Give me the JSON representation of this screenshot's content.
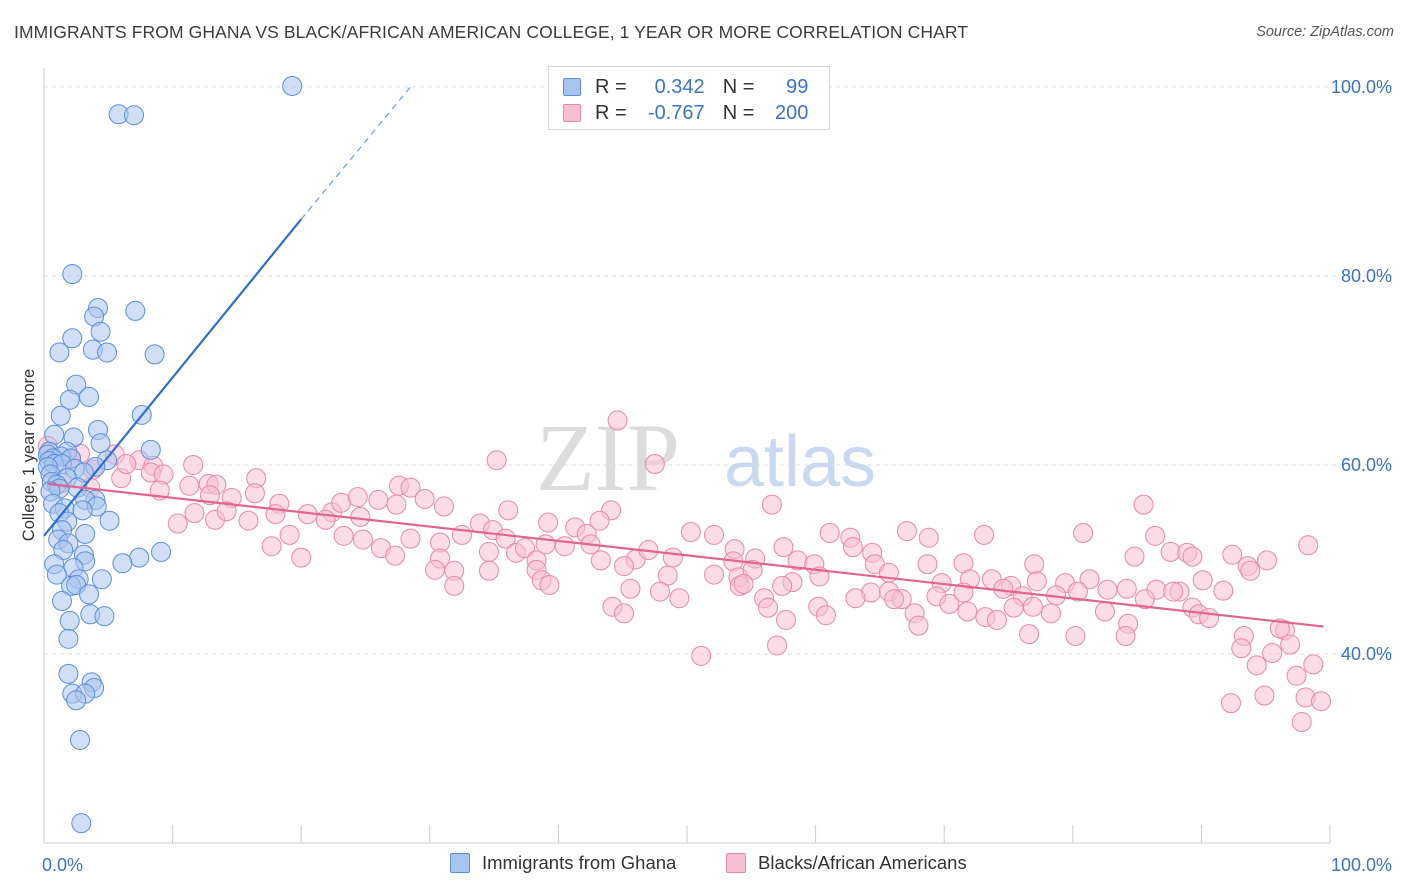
{
  "header": {
    "title": "IMMIGRANTS FROM GHANA VS BLACK/AFRICAN AMERICAN COLLEGE, 1 YEAR OR MORE CORRELATION CHART",
    "source": "Source: ZipAtlas.com"
  },
  "watermark": {
    "zip": "ZIP",
    "atlas": "atlas"
  },
  "legend": {
    "r_label": "R =",
    "n_label": "N =",
    "series": [
      {
        "r": "0.342",
        "n": "99"
      },
      {
        "r": "-0.767",
        "n": "200"
      }
    ]
  },
  "bottom_legend": [
    "Immigrants from Ghana",
    "Blacks/African Americans"
  ],
  "colors": {
    "blue_fill": "#a9c5ef",
    "blue_stroke": "#5b8fdc",
    "blue_line": "#2e6fd6",
    "pink_fill": "#f7bfd3",
    "pink_stroke": "#ea88a9",
    "pink_line": "#e0668f",
    "axis_text": "#3b73c8",
    "grid": "#dddddd"
  },
  "chart_data": {
    "type": "scatter",
    "title": "IMMIGRANTS FROM GHANA VS BLACK/AFRICAN AMERICAN COLLEGE, 1 YEAR OR MORE CORRELATION CHART",
    "xlabel": "",
    "ylabel": "College, 1 year or more",
    "xlim": [
      0,
      100
    ],
    "ylim": [
      20,
      102
    ],
    "x_tick_labels": [
      "0.0%",
      "100.0%"
    ],
    "y_ticks": [
      {
        "value": 40,
        "label": "40.0%"
      },
      {
        "value": 60,
        "label": "60.0%"
      },
      {
        "value": 80,
        "label": "80.0%"
      },
      {
        "value": 100,
        "label": "100.0%"
      }
    ],
    "series": [
      {
        "name": "Immigrants from Ghana",
        "r": 0.342,
        "n": 99,
        "trendline": {
          "x": [
            0,
            20
          ],
          "y": [
            52.5,
            86
          ],
          "dashed_to": [
            28.5,
            100
          ]
        },
        "points": [
          [
            19.3,
            100.1
          ],
          [
            5.8,
            97.1
          ],
          [
            7.0,
            97.0
          ],
          [
            2.2,
            80.2
          ],
          [
            4.2,
            76.6
          ],
          [
            7.1,
            76.3
          ],
          [
            3.9,
            75.7
          ],
          [
            4.4,
            74.1
          ],
          [
            2.2,
            73.4
          ],
          [
            3.8,
            72.2
          ],
          [
            1.2,
            71.9
          ],
          [
            4.9,
            71.9
          ],
          [
            8.6,
            71.7
          ],
          [
            2.5,
            68.5
          ],
          [
            3.5,
            67.2
          ],
          [
            2.0,
            66.9
          ],
          [
            1.3,
            65.2
          ],
          [
            7.6,
            65.3
          ],
          [
            4.2,
            63.7
          ],
          [
            0.8,
            63.2
          ],
          [
            2.3,
            62.9
          ],
          [
            4.4,
            62.3
          ],
          [
            8.3,
            61.6
          ],
          [
            0.4,
            61.4
          ],
          [
            1.8,
            61.4
          ],
          [
            0.3,
            61.1
          ],
          [
            1.3,
            60.9
          ],
          [
            0.7,
            60.7
          ],
          [
            2.1,
            60.7
          ],
          [
            0.4,
            60.4
          ],
          [
            4.9,
            60.5
          ],
          [
            0.8,
            60.1
          ],
          [
            1.4,
            60.1
          ],
          [
            0.3,
            59.8
          ],
          [
            2.4,
            59.6
          ],
          [
            4.0,
            59.8
          ],
          [
            3.1,
            59.2
          ],
          [
            0.5,
            59.0
          ],
          [
            1.8,
            58.6
          ],
          [
            0.6,
            58.2
          ],
          [
            1.0,
            57.9
          ],
          [
            2.6,
            57.6
          ],
          [
            1.2,
            57.5
          ],
          [
            0.5,
            57.2
          ],
          [
            4.0,
            56.3
          ],
          [
            3.2,
            56.3
          ],
          [
            0.7,
            55.9
          ],
          [
            4.1,
            55.6
          ],
          [
            1.6,
            55.4
          ],
          [
            3.0,
            55.2
          ],
          [
            1.2,
            54.9
          ],
          [
            5.1,
            54.1
          ],
          [
            1.8,
            54.0
          ],
          [
            1.4,
            53.1
          ],
          [
            3.2,
            52.7
          ],
          [
            1.1,
            52.1
          ],
          [
            1.9,
            51.7
          ],
          [
            1.5,
            51.0
          ],
          [
            3.1,
            50.5
          ],
          [
            7.4,
            50.2
          ],
          [
            3.2,
            49.8
          ],
          [
            0.8,
            49.5
          ],
          [
            9.1,
            50.8
          ],
          [
            6.1,
            49.6
          ],
          [
            2.3,
            49.1
          ],
          [
            1.0,
            48.4
          ],
          [
            2.7,
            47.9
          ],
          [
            4.5,
            47.9
          ],
          [
            2.1,
            47.2
          ],
          [
            2.5,
            47.3
          ],
          [
            3.5,
            46.3
          ],
          [
            1.4,
            45.6
          ],
          [
            3.6,
            44.2
          ],
          [
            4.7,
            44.0
          ],
          [
            2.0,
            43.5
          ],
          [
            1.9,
            41.6
          ],
          [
            1.9,
            37.9
          ],
          [
            3.7,
            37.0
          ],
          [
            3.9,
            36.4
          ],
          [
            2.2,
            35.8
          ],
          [
            3.2,
            35.8
          ],
          [
            2.5,
            35.1
          ],
          [
            2.8,
            30.9
          ],
          [
            2.9,
            22.1
          ]
        ]
      },
      {
        "name": "Blacks/African Americans",
        "r": -0.767,
        "n": 200,
        "trendline": {
          "x": [
            0.3,
            99.5
          ],
          "y": [
            58.0,
            42.9
          ]
        },
        "points": [
          [
            44.6,
            64.7
          ],
          [
            0.3,
            62.0
          ],
          [
            2.8,
            61.2
          ],
          [
            5.5,
            61.1
          ],
          [
            7.4,
            60.5
          ],
          [
            8.5,
            59.9
          ],
          [
            11.6,
            60.0
          ],
          [
            35.2,
            60.5
          ],
          [
            47.5,
            60.1
          ],
          [
            2.1,
            60.6
          ],
          [
            3.8,
            59.5
          ],
          [
            6.0,
            58.6
          ],
          [
            8.3,
            59.2
          ],
          [
            6.4,
            60.1
          ],
          [
            9.3,
            59.0
          ],
          [
            1.4,
            58.1
          ],
          [
            3.6,
            57.6
          ],
          [
            9.0,
            57.3
          ],
          [
            11.3,
            57.8
          ],
          [
            12.8,
            58.0
          ],
          [
            13.4,
            57.9
          ],
          [
            16.5,
            58.6
          ],
          [
            16.4,
            57.0
          ],
          [
            27.6,
            57.8
          ],
          [
            28.5,
            57.6
          ],
          [
            12.9,
            56.8
          ],
          [
            14.6,
            56.5
          ],
          [
            18.3,
            55.9
          ],
          [
            20.5,
            54.8
          ],
          [
            22.4,
            55.0
          ],
          [
            23.1,
            56.0
          ],
          [
            24.4,
            56.6
          ],
          [
            26.0,
            56.3
          ],
          [
            27.4,
            55.8
          ],
          [
            29.6,
            56.4
          ],
          [
            31.1,
            55.6
          ],
          [
            36.1,
            55.2
          ],
          [
            44.1,
            55.2
          ],
          [
            56.6,
            55.8
          ],
          [
            10.4,
            53.8
          ],
          [
            11.7,
            54.9
          ],
          [
            13.3,
            54.2
          ],
          [
            14.2,
            55.1
          ],
          [
            15.9,
            54.1
          ],
          [
            18.0,
            54.8
          ],
          [
            24.6,
            54.5
          ],
          [
            21.9,
            54.2
          ],
          [
            33.9,
            53.8
          ],
          [
            34.9,
            53.1
          ],
          [
            39.2,
            53.9
          ],
          [
            41.3,
            53.4
          ],
          [
            43.2,
            54.1
          ],
          [
            42.2,
            52.7
          ],
          [
            17.7,
            51.4
          ],
          [
            19.1,
            52.6
          ],
          [
            26.2,
            51.2
          ],
          [
            28.5,
            52.2
          ],
          [
            30.8,
            51.8
          ],
          [
            23.3,
            52.5
          ],
          [
            24.8,
            52.1
          ],
          [
            32.5,
            52.6
          ],
          [
            35.9,
            52.2
          ],
          [
            36.7,
            50.7
          ],
          [
            40.5,
            51.4
          ],
          [
            39.0,
            51.6
          ],
          [
            42.5,
            51.6
          ],
          [
            50.3,
            52.9
          ],
          [
            52.1,
            52.6
          ],
          [
            53.7,
            51.1
          ],
          [
            57.5,
            51.3
          ],
          [
            61.1,
            52.8
          ],
          [
            62.7,
            52.3
          ],
          [
            64.4,
            50.7
          ],
          [
            67.1,
            53.0
          ],
          [
            68.8,
            52.3
          ],
          [
            73.1,
            52.6
          ],
          [
            80.8,
            52.8
          ],
          [
            86.4,
            52.5
          ],
          [
            87.6,
            50.8
          ],
          [
            20.0,
            50.2
          ],
          [
            27.3,
            50.4
          ],
          [
            30.8,
            50.1
          ],
          [
            34.6,
            50.8
          ],
          [
            37.4,
            51.2
          ],
          [
            38.3,
            49.9
          ],
          [
            43.3,
            49.9
          ],
          [
            46.0,
            50.0
          ],
          [
            47.0,
            51.0
          ],
          [
            48.9,
            50.2
          ],
          [
            53.6,
            49.8
          ],
          [
            55.3,
            50.1
          ],
          [
            58.6,
            49.9
          ],
          [
            59.9,
            49.5
          ],
          [
            62.9,
            51.3
          ],
          [
            64.6,
            49.5
          ],
          [
            68.7,
            49.5
          ],
          [
            71.5,
            49.6
          ],
          [
            72.0,
            47.9
          ],
          [
            77.0,
            49.5
          ],
          [
            84.8,
            50.3
          ],
          [
            88.9,
            50.7
          ],
          [
            89.3,
            50.3
          ],
          [
            92.4,
            50.5
          ],
          [
            93.6,
            49.3
          ],
          [
            95.1,
            49.9
          ],
          [
            98.3,
            51.5
          ],
          [
            30.4,
            48.9
          ],
          [
            31.9,
            48.8
          ],
          [
            34.6,
            48.8
          ],
          [
            38.3,
            48.9
          ],
          [
            38.7,
            47.8
          ],
          [
            45.1,
            49.3
          ],
          [
            48.5,
            48.3
          ],
          [
            52.1,
            48.4
          ],
          [
            54.0,
            48.1
          ],
          [
            55.1,
            48.9
          ],
          [
            58.2,
            47.6
          ],
          [
            60.3,
            48.2
          ],
          [
            65.7,
            48.6
          ],
          [
            69.8,
            47.5
          ],
          [
            73.7,
            47.9
          ],
          [
            75.2,
            47.2
          ],
          [
            77.2,
            47.7
          ],
          [
            79.4,
            47.5
          ],
          [
            81.3,
            47.9
          ],
          [
            82.7,
            46.8
          ],
          [
            88.3,
            46.6
          ],
          [
            90.1,
            47.8
          ],
          [
            93.8,
            48.8
          ],
          [
            31.9,
            47.2
          ],
          [
            39.3,
            47.3
          ],
          [
            45.6,
            46.9
          ],
          [
            47.9,
            46.6
          ],
          [
            54.1,
            47.2
          ],
          [
            54.4,
            47.4
          ],
          [
            57.4,
            47.2
          ],
          [
            64.3,
            46.5
          ],
          [
            65.7,
            46.6
          ],
          [
            66.7,
            45.8
          ],
          [
            69.4,
            46.1
          ],
          [
            71.5,
            46.5
          ],
          [
            74.6,
            46.9
          ],
          [
            76.1,
            46.1
          ],
          [
            78.7,
            46.2
          ],
          [
            80.4,
            46.6
          ],
          [
            84.2,
            46.9
          ],
          [
            86.5,
            46.8
          ],
          [
            87.8,
            46.6
          ],
          [
            91.7,
            46.7
          ],
          [
            44.2,
            45.0
          ],
          [
            49.4,
            45.9
          ],
          [
            56.0,
            45.9
          ],
          [
            60.2,
            45.0
          ],
          [
            63.1,
            45.9
          ],
          [
            66.1,
            45.8
          ],
          [
            70.4,
            45.3
          ],
          [
            71.8,
            44.5
          ],
          [
            75.4,
            44.9
          ],
          [
            76.9,
            45.0
          ],
          [
            78.3,
            44.3
          ],
          [
            82.5,
            44.5
          ],
          [
            85.6,
            45.8
          ],
          [
            89.3,
            44.9
          ],
          [
            56.3,
            44.9
          ],
          [
            60.8,
            44.1
          ],
          [
            45.1,
            44.3
          ],
          [
            57.7,
            43.6
          ],
          [
            67.7,
            44.3
          ],
          [
            73.2,
            43.9
          ],
          [
            74.1,
            43.6
          ],
          [
            84.3,
            43.2
          ],
          [
            89.8,
            44.2
          ],
          [
            90.6,
            43.8
          ],
          [
            68.0,
            43.0
          ],
          [
            76.6,
            42.1
          ],
          [
            80.2,
            41.9
          ],
          [
            84.1,
            41.9
          ],
          [
            96.5,
            42.5
          ],
          [
            93.3,
            41.9
          ],
          [
            96.1,
            42.7
          ],
          [
            57.0,
            40.9
          ],
          [
            51.1,
            39.8
          ],
          [
            96.9,
            41.0
          ],
          [
            93.1,
            40.6
          ],
          [
            95.5,
            40.1
          ],
          [
            94.3,
            38.8
          ],
          [
            98.7,
            38.9
          ],
          [
            97.4,
            37.7
          ],
          [
            92.3,
            34.8
          ],
          [
            94.9,
            35.6
          ],
          [
            98.1,
            35.4
          ],
          [
            99.3,
            35.0
          ],
          [
            97.8,
            32.8
          ],
          [
            85.5,
            55.8
          ]
        ]
      }
    ]
  }
}
